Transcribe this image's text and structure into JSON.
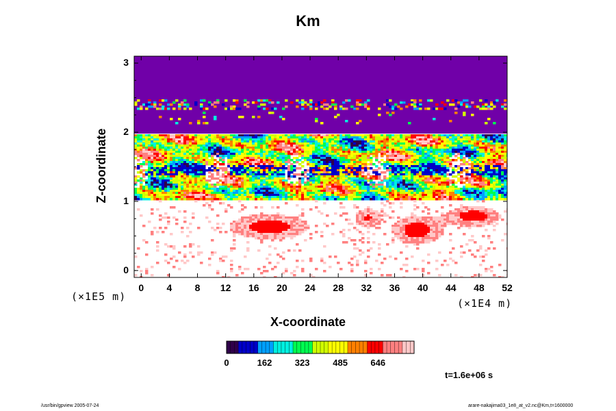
{
  "chart_data": {
    "type": "heatmap",
    "title": "Km",
    "xlabel": "X-coordinate",
    "ylabel": "Z-coordinate",
    "x_unit": "(×1E4 m)",
    "y_unit": "(×1E5 m)",
    "x_ticks": [
      "0",
      "4",
      "8",
      "12",
      "16",
      "20",
      "24",
      "28",
      "32",
      "36",
      "40",
      "44",
      "48",
      "52"
    ],
    "y_ticks": [
      "0",
      "1",
      "2",
      "3"
    ],
    "xlim": [
      -1,
      52
    ],
    "ylim": [
      -0.1,
      3.1
    ],
    "colorbar": {
      "ticks": [
        "0",
        "162",
        "323",
        "485",
        "646"
      ],
      "range": [
        0,
        800
      ]
    },
    "background_color": "#7000a8",
    "colormap": [
      "#30004a",
      "#0000c8",
      "#00a0ff",
      "#00f0e0",
      "#00ff50",
      "#d0ff00",
      "#ffff00",
      "#ff8000",
      "#ff0000",
      "#ff8080",
      "#ffc8c8"
    ]
  },
  "time_label": "t=1.6e+06 s",
  "footer": {
    "left": "/usr/bin/gpview 2005-07-24",
    "right": "arare-nakajima03_1e8_at_v2.nc@Km,t=1600000"
  }
}
